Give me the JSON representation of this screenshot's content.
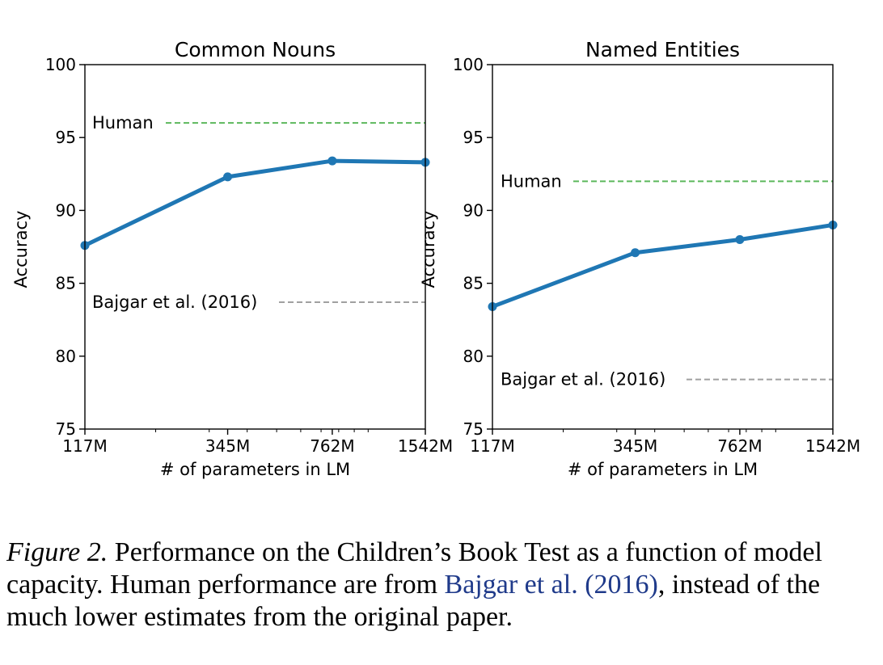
{
  "chart_data": [
    {
      "type": "line",
      "title": "Common Nouns",
      "xlabel": "# of parameters in LM",
      "ylabel": "Accuracy",
      "x_scale": "log",
      "x": [
        117,
        345,
        762,
        1542
      ],
      "xtick_labels": [
        "117M",
        "345M",
        "762M",
        "1542M"
      ],
      "ylim": [
        75,
        100
      ],
      "yticks": [
        75,
        80,
        85,
        90,
        95,
        100
      ],
      "series": [
        {
          "values": [
            87.6,
            92.3,
            93.4,
            93.3
          ],
          "color": "#1f77b4"
        }
      ],
      "reference_lines": [
        {
          "label": "Human",
          "value": 96.0,
          "color": "#5cb85c"
        },
        {
          "label": "Bajgar et al. (2016)",
          "value": 83.7,
          "color": "#a0a0a0"
        }
      ],
      "grid": false
    },
    {
      "type": "line",
      "title": "Named Entities",
      "xlabel": "# of parameters in LM",
      "ylabel": "Accuracy",
      "x_scale": "log",
      "x": [
        117,
        345,
        762,
        1542
      ],
      "xtick_labels": [
        "117M",
        "345M",
        "762M",
        "1542M"
      ],
      "ylim": [
        75,
        100
      ],
      "yticks": [
        75,
        80,
        85,
        90,
        95,
        100
      ],
      "series": [
        {
          "values": [
            83.4,
            87.1,
            88.0,
            89.0
          ],
          "color": "#1f77b4"
        }
      ],
      "reference_lines": [
        {
          "label": "Human",
          "value": 92.0,
          "color": "#5cb85c"
        },
        {
          "label": "Bajgar et al. (2016)",
          "value": 78.4,
          "color": "#a0a0a0"
        }
      ],
      "grid": false
    }
  ],
  "caption": {
    "label": "Figure 2.",
    "text_a": " Performance on the Children’s Book Test as a function of model capacity. Human performance are from ",
    "citation": "Bajgar et al. (2016)",
    "text_b": ", instead of the much lower estimates from the original paper."
  }
}
